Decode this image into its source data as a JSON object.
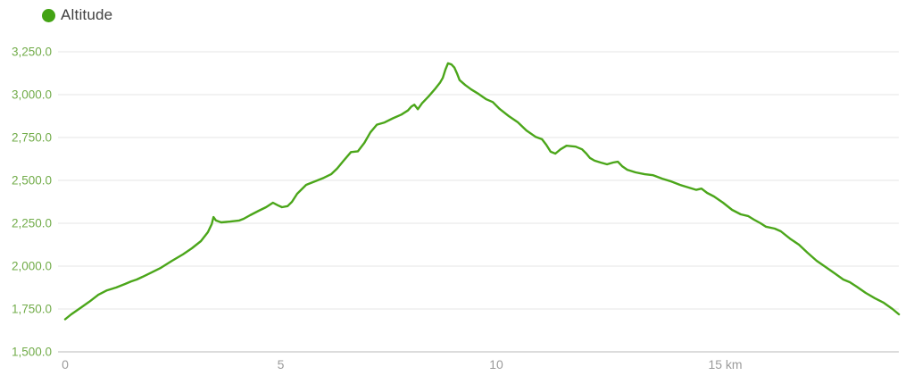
{
  "legend": {
    "label": "Altitude"
  },
  "colors": {
    "line": "#4ba61a",
    "legend_dot": "#43a314",
    "legend_text": "#3f3f3f",
    "y_tick_label": "#72ac4a",
    "x_tick_label": "#9b9b9b",
    "gridline": "#eaeaea",
    "axis_line": "#dcdcdc",
    "background": "#ffffff"
  },
  "chart_data": {
    "type": "line",
    "title": "",
    "xlabel": "km",
    "ylabel": "Altitude",
    "grid": true,
    "legend_position": "top-left",
    "ylim": [
      1500,
      3250
    ],
    "xlim": [
      0,
      19.4
    ],
    "yticks": [
      {
        "value": 3250,
        "label": "3,250.0"
      },
      {
        "value": 3000,
        "label": "3,000.0"
      },
      {
        "value": 2750,
        "label": "2,750.0"
      },
      {
        "value": 2500,
        "label": "2,500.0"
      },
      {
        "value": 2250,
        "label": "2,250.0"
      },
      {
        "value": 2000,
        "label": "2,000.0"
      },
      {
        "value": 1750,
        "label": "1,750.0"
      },
      {
        "value": 1500,
        "label": "1,500.0"
      }
    ],
    "xticks": [
      {
        "value": 0,
        "label": "0"
      },
      {
        "value": 5,
        "label": "5"
      },
      {
        "value": 10,
        "label": "10"
      },
      {
        "value": 15,
        "label": "15 km"
      }
    ],
    "series": [
      {
        "name": "Altitude",
        "color": "#4ba61a",
        "points": [
          [
            0.0,
            1690
          ],
          [
            0.14,
            1719
          ],
          [
            0.35,
            1755
          ],
          [
            0.56,
            1792
          ],
          [
            0.77,
            1833
          ],
          [
            0.97,
            1859
          ],
          [
            1.18,
            1875
          ],
          [
            1.39,
            1896
          ],
          [
            1.53,
            1911
          ],
          [
            1.66,
            1922
          ],
          [
            1.8,
            1938
          ],
          [
            2.01,
            1964
          ],
          [
            2.22,
            1990
          ],
          [
            2.48,
            2031
          ],
          [
            2.73,
            2068
          ],
          [
            2.94,
            2104
          ],
          [
            3.15,
            2146
          ],
          [
            3.31,
            2198
          ],
          [
            3.4,
            2245
          ],
          [
            3.44,
            2286
          ],
          [
            3.5,
            2266
          ],
          [
            3.62,
            2255
          ],
          [
            3.83,
            2260
          ],
          [
            4.04,
            2266
          ],
          [
            4.14,
            2276
          ],
          [
            4.29,
            2297
          ],
          [
            4.49,
            2323
          ],
          [
            4.66,
            2344
          ],
          [
            4.82,
            2370
          ],
          [
            4.93,
            2355
          ],
          [
            5.03,
            2344
          ],
          [
            5.16,
            2350
          ],
          [
            5.26,
            2375
          ],
          [
            5.38,
            2422
          ],
          [
            5.59,
            2474
          ],
          [
            5.8,
            2495
          ],
          [
            6.0,
            2515
          ],
          [
            6.17,
            2536
          ],
          [
            6.31,
            2570
          ],
          [
            6.46,
            2615
          ],
          [
            6.63,
            2665
          ],
          [
            6.79,
            2670
          ],
          [
            6.94,
            2719
          ],
          [
            7.08,
            2780
          ],
          [
            7.23,
            2825
          ],
          [
            7.41,
            2838
          ],
          [
            7.6,
            2862
          ],
          [
            7.8,
            2884
          ],
          [
            7.95,
            2908
          ],
          [
            8.03,
            2930
          ],
          [
            8.1,
            2941
          ],
          [
            8.18,
            2915
          ],
          [
            8.28,
            2950
          ],
          [
            8.43,
            2990
          ],
          [
            8.57,
            3030
          ],
          [
            8.7,
            3072
          ],
          [
            8.76,
            3098
          ],
          [
            8.82,
            3146
          ],
          [
            8.88,
            3183
          ],
          [
            8.96,
            3176
          ],
          [
            9.03,
            3158
          ],
          [
            9.09,
            3124
          ],
          [
            9.15,
            3085
          ],
          [
            9.28,
            3056
          ],
          [
            9.42,
            3030
          ],
          [
            9.59,
            3004
          ],
          [
            9.77,
            2973
          ],
          [
            9.92,
            2957
          ],
          [
            10.08,
            2916
          ],
          [
            10.29,
            2875
          ],
          [
            10.5,
            2839
          ],
          [
            10.7,
            2791
          ],
          [
            10.91,
            2754
          ],
          [
            11.06,
            2740
          ],
          [
            11.16,
            2708
          ],
          [
            11.26,
            2667
          ],
          [
            11.37,
            2656
          ],
          [
            11.49,
            2681
          ],
          [
            11.63,
            2702
          ],
          [
            11.84,
            2697
          ],
          [
            11.99,
            2681
          ],
          [
            12.09,
            2656
          ],
          [
            12.17,
            2631
          ],
          [
            12.28,
            2615
          ],
          [
            12.42,
            2604
          ],
          [
            12.57,
            2594
          ],
          [
            12.71,
            2604
          ],
          [
            12.82,
            2609
          ],
          [
            12.92,
            2583
          ],
          [
            13.04,
            2562
          ],
          [
            13.23,
            2547
          ],
          [
            13.44,
            2536
          ],
          [
            13.64,
            2530
          ],
          [
            13.85,
            2510
          ],
          [
            14.06,
            2494
          ],
          [
            14.26,
            2474
          ],
          [
            14.47,
            2458
          ],
          [
            14.64,
            2445
          ],
          [
            14.76,
            2452
          ],
          [
            14.89,
            2427
          ],
          [
            15.05,
            2406
          ],
          [
            15.26,
            2370
          ],
          [
            15.47,
            2328
          ],
          [
            15.67,
            2302
          ],
          [
            15.84,
            2292
          ],
          [
            15.98,
            2271
          ],
          [
            16.13,
            2250
          ],
          [
            16.25,
            2230
          ],
          [
            16.46,
            2219
          ],
          [
            16.6,
            2203
          ],
          [
            16.81,
            2161
          ],
          [
            17.02,
            2125
          ],
          [
            17.22,
            2078
          ],
          [
            17.43,
            2031
          ],
          [
            17.64,
            1995
          ],
          [
            17.85,
            1958
          ],
          [
            18.05,
            1922
          ],
          [
            18.2,
            1906
          ],
          [
            18.36,
            1880
          ],
          [
            18.57,
            1844
          ],
          [
            18.78,
            1813
          ],
          [
            18.99,
            1786
          ],
          [
            19.19,
            1750
          ],
          [
            19.34,
            1719
          ]
        ]
      }
    ]
  }
}
